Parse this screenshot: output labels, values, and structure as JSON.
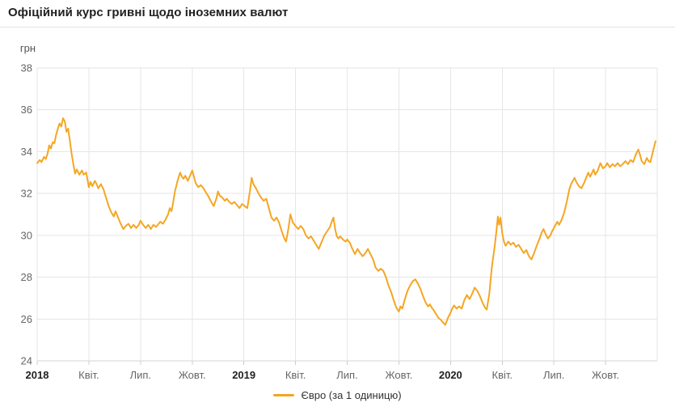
{
  "header": {
    "title": "Офіційний курс гривні щодо іноземних валют"
  },
  "colors": {
    "line": "#f5a623",
    "grid": "#e6e6e6",
    "axis_bottom": "#d6d6d6",
    "tick": "#cccccc",
    "tick_label": "#666666",
    "month_label": "#555555",
    "year_label": "#212121",
    "title": "#212121",
    "legend_text": "#333333",
    "divider": "#e4e4e4",
    "background": "#ffffff"
  },
  "legend": {
    "label": "Євро (за 1 одиницю)"
  },
  "chart_data": {
    "type": "line",
    "title": "Офіційний курс гривні щодо іноземних валют",
    "ylabel": "грн",
    "ylim": [
      24,
      38
    ],
    "yticks": [
      24,
      26,
      28,
      30,
      32,
      34,
      36,
      38
    ],
    "grid": true,
    "legend_position": "bottom-center",
    "x_months_range": [
      0,
      36
    ],
    "x_ticks": [
      {
        "m": 0,
        "label": "2018",
        "bold": true
      },
      {
        "m": 3,
        "label": "Квіт."
      },
      {
        "m": 6,
        "label": "Лип."
      },
      {
        "m": 9,
        "label": "Жовт."
      },
      {
        "m": 12,
        "label": "2019",
        "bold": true
      },
      {
        "m": 15,
        "label": "Квіт."
      },
      {
        "m": 18,
        "label": "Лип."
      },
      {
        "m": 21,
        "label": "Жовт."
      },
      {
        "m": 24,
        "label": "2020",
        "bold": true
      },
      {
        "m": 27,
        "label": "Квіт."
      },
      {
        "m": 30,
        "label": "Лип."
      },
      {
        "m": 33,
        "label": "Жовт."
      }
    ],
    "series": [
      {
        "name": "Євро (за 1 одиницю)",
        "color": "#f5a623",
        "points_month_value": [
          [
            0,
            33.45
          ],
          [
            0.15,
            33.6
          ],
          [
            0.25,
            33.5
          ],
          [
            0.4,
            33.75
          ],
          [
            0.5,
            33.65
          ],
          [
            0.6,
            33.9
          ],
          [
            0.7,
            34.3
          ],
          [
            0.8,
            34.15
          ],
          [
            0.9,
            34.45
          ],
          [
            1.0,
            34.4
          ],
          [
            1.1,
            34.8
          ],
          [
            1.2,
            35.1
          ],
          [
            1.3,
            35.35
          ],
          [
            1.4,
            35.2
          ],
          [
            1.5,
            35.6
          ],
          [
            1.6,
            35.45
          ],
          [
            1.7,
            34.95
          ],
          [
            1.8,
            35.1
          ],
          [
            1.9,
            34.5
          ],
          [
            2.0,
            33.9
          ],
          [
            2.1,
            33.4
          ],
          [
            2.2,
            32.95
          ],
          [
            2.3,
            33.15
          ],
          [
            2.45,
            32.9
          ],
          [
            2.6,
            33.1
          ],
          [
            2.7,
            32.9
          ],
          [
            2.85,
            33.0
          ],
          [
            3.0,
            32.3
          ],
          [
            3.1,
            32.55
          ],
          [
            3.2,
            32.35
          ],
          [
            3.35,
            32.6
          ],
          [
            3.45,
            32.45
          ],
          [
            3.55,
            32.25
          ],
          [
            3.7,
            32.45
          ],
          [
            3.85,
            32.2
          ],
          [
            4.0,
            31.8
          ],
          [
            4.15,
            31.4
          ],
          [
            4.3,
            31.1
          ],
          [
            4.45,
            30.9
          ],
          [
            4.55,
            31.15
          ],
          [
            4.7,
            30.85
          ],
          [
            4.85,
            30.55
          ],
          [
            5.0,
            30.3
          ],
          [
            5.15,
            30.45
          ],
          [
            5.3,
            30.55
          ],
          [
            5.45,
            30.35
          ],
          [
            5.6,
            30.5
          ],
          [
            5.75,
            30.35
          ],
          [
            5.9,
            30.5
          ],
          [
            6.0,
            30.7
          ],
          [
            6.15,
            30.5
          ],
          [
            6.3,
            30.35
          ],
          [
            6.45,
            30.5
          ],
          [
            6.6,
            30.3
          ],
          [
            6.75,
            30.5
          ],
          [
            6.9,
            30.4
          ],
          [
            7.0,
            30.5
          ],
          [
            7.15,
            30.65
          ],
          [
            7.3,
            30.55
          ],
          [
            7.45,
            30.75
          ],
          [
            7.6,
            31.0
          ],
          [
            7.7,
            31.3
          ],
          [
            7.8,
            31.15
          ],
          [
            7.9,
            31.6
          ],
          [
            8.0,
            32.1
          ],
          [
            8.15,
            32.6
          ],
          [
            8.3,
            33.0
          ],
          [
            8.4,
            32.8
          ],
          [
            8.5,
            32.7
          ],
          [
            8.6,
            32.85
          ],
          [
            8.75,
            32.6
          ],
          [
            8.9,
            32.9
          ],
          [
            9.0,
            33.1
          ],
          [
            9.1,
            32.8
          ],
          [
            9.2,
            32.5
          ],
          [
            9.35,
            32.3
          ],
          [
            9.5,
            32.4
          ],
          [
            9.65,
            32.25
          ],
          [
            9.8,
            32.05
          ],
          [
            9.95,
            31.85
          ],
          [
            10.1,
            31.6
          ],
          [
            10.25,
            31.4
          ],
          [
            10.4,
            31.75
          ],
          [
            10.5,
            32.1
          ],
          [
            10.6,
            31.9
          ],
          [
            10.75,
            31.8
          ],
          [
            10.9,
            31.65
          ],
          [
            11.0,
            31.75
          ],
          [
            11.15,
            31.6
          ],
          [
            11.3,
            31.5
          ],
          [
            11.45,
            31.6
          ],
          [
            11.6,
            31.45
          ],
          [
            11.75,
            31.3
          ],
          [
            11.9,
            31.5
          ],
          [
            12.05,
            31.4
          ],
          [
            12.2,
            31.3
          ],
          [
            12.35,
            32.1
          ],
          [
            12.45,
            32.75
          ],
          [
            12.55,
            32.45
          ],
          [
            12.7,
            32.25
          ],
          [
            12.85,
            32.0
          ],
          [
            13.0,
            31.8
          ],
          [
            13.15,
            31.65
          ],
          [
            13.3,
            31.75
          ],
          [
            13.45,
            31.3
          ],
          [
            13.6,
            30.85
          ],
          [
            13.75,
            30.7
          ],
          [
            13.9,
            30.85
          ],
          [
            14.05,
            30.6
          ],
          [
            14.2,
            30.2
          ],
          [
            14.35,
            29.85
          ],
          [
            14.45,
            29.7
          ],
          [
            14.6,
            30.4
          ],
          [
            14.7,
            31.0
          ],
          [
            14.85,
            30.6
          ],
          [
            15.0,
            30.45
          ],
          [
            15.15,
            30.3
          ],
          [
            15.3,
            30.45
          ],
          [
            15.45,
            30.3
          ],
          [
            15.6,
            30.0
          ],
          [
            15.75,
            29.85
          ],
          [
            15.9,
            29.95
          ],
          [
            16.05,
            29.75
          ],
          [
            16.2,
            29.55
          ],
          [
            16.35,
            29.35
          ],
          [
            16.5,
            29.65
          ],
          [
            16.65,
            29.95
          ],
          [
            16.8,
            30.15
          ],
          [
            17.0,
            30.4
          ],
          [
            17.1,
            30.65
          ],
          [
            17.2,
            30.85
          ],
          [
            17.3,
            30.3
          ],
          [
            17.4,
            29.95
          ],
          [
            17.5,
            29.85
          ],
          [
            17.6,
            29.95
          ],
          [
            17.75,
            29.8
          ],
          [
            17.9,
            29.7
          ],
          [
            18.0,
            29.8
          ],
          [
            18.15,
            29.65
          ],
          [
            18.3,
            29.35
          ],
          [
            18.45,
            29.1
          ],
          [
            18.6,
            29.35
          ],
          [
            18.75,
            29.15
          ],
          [
            18.9,
            29.0
          ],
          [
            19.05,
            29.15
          ],
          [
            19.2,
            29.35
          ],
          [
            19.35,
            29.1
          ],
          [
            19.5,
            28.85
          ],
          [
            19.65,
            28.45
          ],
          [
            19.8,
            28.3
          ],
          [
            19.95,
            28.4
          ],
          [
            20.1,
            28.3
          ],
          [
            20.25,
            28.0
          ],
          [
            20.4,
            27.6
          ],
          [
            20.55,
            27.3
          ],
          [
            20.7,
            26.9
          ],
          [
            20.85,
            26.55
          ],
          [
            21.0,
            26.35
          ],
          [
            21.1,
            26.6
          ],
          [
            21.2,
            26.5
          ],
          [
            21.35,
            26.95
          ],
          [
            21.5,
            27.35
          ],
          [
            21.65,
            27.6
          ],
          [
            21.8,
            27.8
          ],
          [
            21.95,
            27.9
          ],
          [
            22.1,
            27.7
          ],
          [
            22.25,
            27.45
          ],
          [
            22.4,
            27.1
          ],
          [
            22.55,
            26.8
          ],
          [
            22.7,
            26.6
          ],
          [
            22.8,
            26.7
          ],
          [
            22.9,
            26.55
          ],
          [
            23.0,
            26.45
          ],
          [
            23.15,
            26.25
          ],
          [
            23.3,
            26.05
          ],
          [
            23.45,
            25.95
          ],
          [
            23.6,
            25.8
          ],
          [
            23.7,
            25.72
          ],
          [
            23.85,
            26.05
          ],
          [
            24.0,
            26.3
          ],
          [
            24.1,
            26.5
          ],
          [
            24.2,
            26.65
          ],
          [
            24.35,
            26.5
          ],
          [
            24.5,
            26.6
          ],
          [
            24.65,
            26.5
          ],
          [
            24.8,
            26.9
          ],
          [
            24.95,
            27.15
          ],
          [
            25.1,
            26.95
          ],
          [
            25.25,
            27.2
          ],
          [
            25.4,
            27.5
          ],
          [
            25.55,
            27.35
          ],
          [
            25.7,
            27.1
          ],
          [
            25.85,
            26.8
          ],
          [
            26.0,
            26.55
          ],
          [
            26.1,
            26.45
          ],
          [
            26.25,
            27.2
          ],
          [
            26.4,
            28.5
          ],
          [
            26.55,
            29.4
          ],
          [
            26.65,
            30.1
          ],
          [
            26.75,
            30.9
          ],
          [
            26.82,
            30.5
          ],
          [
            26.9,
            30.85
          ],
          [
            27.0,
            30.1
          ],
          [
            27.1,
            29.7
          ],
          [
            27.2,
            29.5
          ],
          [
            27.35,
            29.7
          ],
          [
            27.5,
            29.55
          ],
          [
            27.65,
            29.65
          ],
          [
            27.8,
            29.45
          ],
          [
            27.95,
            29.55
          ],
          [
            28.1,
            29.35
          ],
          [
            28.25,
            29.15
          ],
          [
            28.4,
            29.3
          ],
          [
            28.55,
            29.0
          ],
          [
            28.7,
            28.85
          ],
          [
            28.85,
            29.15
          ],
          [
            29.0,
            29.5
          ],
          [
            29.15,
            29.8
          ],
          [
            29.3,
            30.15
          ],
          [
            29.4,
            30.3
          ],
          [
            29.5,
            30.1
          ],
          [
            29.65,
            29.85
          ],
          [
            29.8,
            30.0
          ],
          [
            29.9,
            30.2
          ],
          [
            30.0,
            30.35
          ],
          [
            30.1,
            30.5
          ],
          [
            30.2,
            30.65
          ],
          [
            30.3,
            30.5
          ],
          [
            30.45,
            30.75
          ],
          [
            30.6,
            31.1
          ],
          [
            30.75,
            31.6
          ],
          [
            30.9,
            32.2
          ],
          [
            31.0,
            32.45
          ],
          [
            31.1,
            32.6
          ],
          [
            31.2,
            32.75
          ],
          [
            31.3,
            32.55
          ],
          [
            31.45,
            32.35
          ],
          [
            31.6,
            32.25
          ],
          [
            31.75,
            32.5
          ],
          [
            31.9,
            32.8
          ],
          [
            32.0,
            33.0
          ],
          [
            32.1,
            32.8
          ],
          [
            32.2,
            32.95
          ],
          [
            32.3,
            33.15
          ],
          [
            32.4,
            32.9
          ],
          [
            32.55,
            33.1
          ],
          [
            32.7,
            33.45
          ],
          [
            32.85,
            33.2
          ],
          [
            33.0,
            33.3
          ],
          [
            33.1,
            33.45
          ],
          [
            33.25,
            33.25
          ],
          [
            33.4,
            33.4
          ],
          [
            33.55,
            33.3
          ],
          [
            33.7,
            33.45
          ],
          [
            33.85,
            33.3
          ],
          [
            34.0,
            33.4
          ],
          [
            34.15,
            33.55
          ],
          [
            34.3,
            33.4
          ],
          [
            34.45,
            33.6
          ],
          [
            34.6,
            33.5
          ],
          [
            34.75,
            33.85
          ],
          [
            34.9,
            34.1
          ],
          [
            35.0,
            33.85
          ],
          [
            35.1,
            33.55
          ],
          [
            35.25,
            33.4
          ],
          [
            35.4,
            33.7
          ],
          [
            35.5,
            33.55
          ],
          [
            35.6,
            33.5
          ],
          [
            35.75,
            34.0
          ],
          [
            35.9,
            34.5
          ]
        ]
      }
    ]
  }
}
